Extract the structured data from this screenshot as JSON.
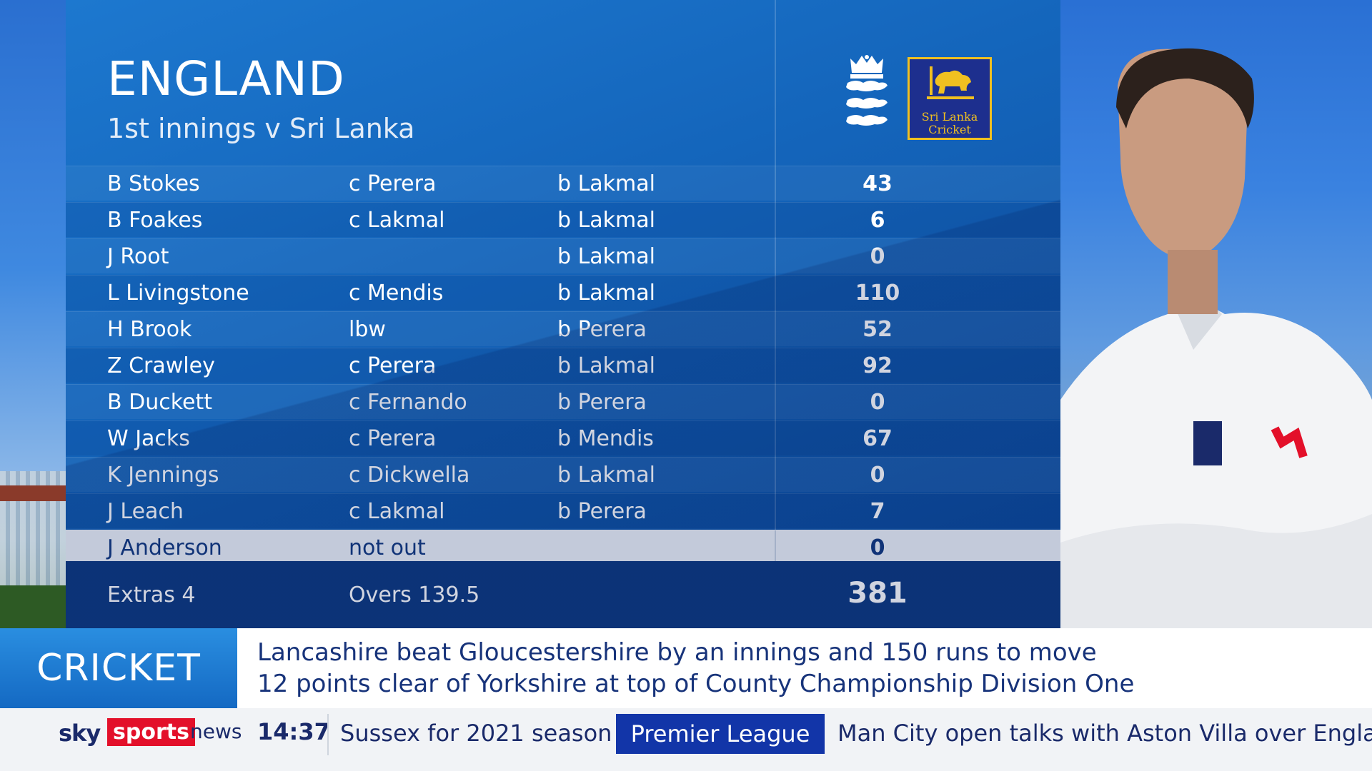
{
  "scorecard": {
    "title": "ENGLAND",
    "subtitle": "1st innings v Sri Lanka",
    "sl_logo_text": [
      "Sri Lanka",
      "Cricket"
    ],
    "batters": [
      {
        "name": "B Stokes",
        "how": "c Perera",
        "bowler": "b Lakmal",
        "runs": "43"
      },
      {
        "name": "B Foakes",
        "how": "c Lakmal",
        "bowler": "b Lakmal",
        "runs": "6"
      },
      {
        "name": "J Root",
        "how": "",
        "bowler": "b Lakmal",
        "runs": "0"
      },
      {
        "name": "L Livingstone",
        "how": "c Mendis",
        "bowler": "b Lakmal",
        "runs": "110"
      },
      {
        "name": "H Brook",
        "how": "lbw",
        "bowler": "b Perera",
        "runs": "52"
      },
      {
        "name": "Z Crawley",
        "how": "c Perera",
        "bowler": "b Lakmal",
        "runs": "92"
      },
      {
        "name": "B Duckett",
        "how": "c Fernando",
        "bowler": "b Perera",
        "runs": "0"
      },
      {
        "name": "W Jacks",
        "how": "c Perera",
        "bowler": "b Mendis",
        "runs": "67"
      },
      {
        "name": "K Jennings",
        "how": "c Dickwella",
        "bowler": "b Lakmal",
        "runs": "0"
      },
      {
        "name": "J Leach",
        "how": "c Lakmal",
        "bowler": "b Perera",
        "runs": "7"
      },
      {
        "name": "J Anderson",
        "how": "not out",
        "bowler": "",
        "runs": "0",
        "highlight": true
      }
    ],
    "extras": "Extras 4",
    "overs": "Overs 139.5",
    "total": "381"
  },
  "news": {
    "tag": "CRICKET",
    "line1": "Lancashire beat Gloucestershire by an innings and 150 runs to move",
    "line2": "12 points clear of Yorkshire at top of County Championship Division One"
  },
  "ticker": {
    "brand_sky": "sky",
    "brand_sports": "sports",
    "brand_news": "news",
    "time": "14:37",
    "item1": "Sussex for 2021 season",
    "category": "Premier League",
    "item2": "Man City open talks with Aston Villa over Englan"
  },
  "colors": {
    "panel_blue": "#1465bb",
    "highlight_row": "#eef2f8",
    "sky_red": "#e3102a",
    "ticker_category": "#1235a8"
  },
  "icons": [
    "england-crest-icon",
    "sri-lanka-lion-icon"
  ]
}
